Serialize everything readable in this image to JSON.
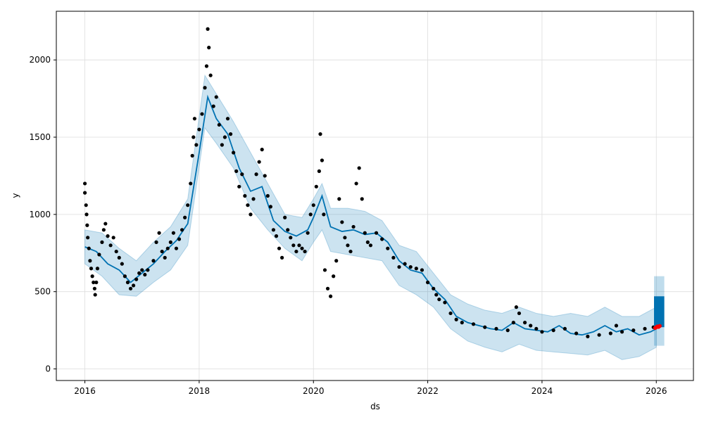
{
  "chart_data": {
    "type": "scatter",
    "xlabel": "ds",
    "ylabel": "y",
    "xlim": [
      2015.5,
      2026.65
    ],
    "ylim": [
      -75,
      2315
    ],
    "grid": true,
    "x_ticks": [
      2016,
      2018,
      2020,
      2022,
      2024,
      2026
    ],
    "x_tick_labels": [
      "2016",
      "2018",
      "2020",
      "2022",
      "2024",
      "2026"
    ],
    "y_ticks": [
      0,
      500,
      1000,
      1500,
      2000
    ],
    "y_tick_labels": [
      "0",
      "500",
      "1000",
      "1500",
      "2000"
    ],
    "colors": {
      "observed": "#000000",
      "forecast_line": "#0072B2",
      "interval_band": "#0072B2",
      "highlight": "#ff0000",
      "grid": "#dddddd"
    },
    "series": [
      {
        "kind": "observed_points",
        "points": [
          [
            2016.0,
            1200
          ],
          [
            2016.0,
            1140
          ],
          [
            2016.02,
            1060
          ],
          [
            2016.03,
            1000
          ],
          [
            2016.04,
            930
          ],
          [
            2016.05,
            850
          ],
          [
            2016.07,
            780
          ],
          [
            2016.09,
            700
          ],
          [
            2016.11,
            650
          ],
          [
            2016.13,
            600
          ],
          [
            2016.15,
            560
          ],
          [
            2016.17,
            520
          ],
          [
            2016.18,
            480
          ],
          [
            2016.2,
            560
          ],
          [
            2016.22,
            650
          ],
          [
            2016.25,
            740
          ],
          [
            2016.3,
            820
          ],
          [
            2016.33,
            900
          ],
          [
            2016.36,
            940
          ],
          [
            2016.4,
            860
          ],
          [
            2016.45,
            800
          ],
          [
            2016.5,
            850
          ],
          [
            2016.55,
            760
          ],
          [
            2016.6,
            720
          ],
          [
            2016.65,
            680
          ],
          [
            2016.7,
            600
          ],
          [
            2016.75,
            560
          ],
          [
            2016.8,
            520
          ],
          [
            2016.85,
            540
          ],
          [
            2016.9,
            580
          ],
          [
            2016.95,
            620
          ],
          [
            2017.0,
            640
          ],
          [
            2017.05,
            610
          ],
          [
            2017.1,
            640
          ],
          [
            2017.2,
            700
          ],
          [
            2017.25,
            820
          ],
          [
            2017.3,
            880
          ],
          [
            2017.35,
            760
          ],
          [
            2017.4,
            720
          ],
          [
            2017.45,
            780
          ],
          [
            2017.5,
            820
          ],
          [
            2017.55,
            880
          ],
          [
            2017.6,
            780
          ],
          [
            2017.65,
            840
          ],
          [
            2017.7,
            900
          ],
          [
            2017.75,
            980
          ],
          [
            2017.8,
            1060
          ],
          [
            2017.85,
            1200
          ],
          [
            2017.88,
            1380
          ],
          [
            2017.9,
            1500
          ],
          [
            2017.92,
            1620
          ],
          [
            2017.95,
            1450
          ],
          [
            2018.0,
            1550
          ],
          [
            2018.05,
            1650
          ],
          [
            2018.1,
            1820
          ],
          [
            2018.13,
            1960
          ],
          [
            2018.15,
            2200
          ],
          [
            2018.17,
            2080
          ],
          [
            2018.2,
            1900
          ],
          [
            2018.25,
            1700
          ],
          [
            2018.3,
            1760
          ],
          [
            2018.35,
            1580
          ],
          [
            2018.4,
            1450
          ],
          [
            2018.45,
            1500
          ],
          [
            2018.5,
            1620
          ],
          [
            2018.55,
            1520
          ],
          [
            2018.6,
            1400
          ],
          [
            2018.65,
            1280
          ],
          [
            2018.7,
            1180
          ],
          [
            2018.75,
            1260
          ],
          [
            2018.8,
            1120
          ],
          [
            2018.85,
            1060
          ],
          [
            2018.9,
            1000
          ],
          [
            2018.95,
            1100
          ],
          [
            2019.0,
            1260
          ],
          [
            2019.05,
            1340
          ],
          [
            2019.1,
            1420
          ],
          [
            2019.15,
            1250
          ],
          [
            2019.2,
            1120
          ],
          [
            2019.25,
            1050
          ],
          [
            2019.3,
            900
          ],
          [
            2019.35,
            860
          ],
          [
            2019.4,
            780
          ],
          [
            2019.45,
            720
          ],
          [
            2019.5,
            980
          ],
          [
            2019.55,
            900
          ],
          [
            2019.6,
            850
          ],
          [
            2019.65,
            800
          ],
          [
            2019.7,
            760
          ],
          [
            2019.75,
            800
          ],
          [
            2019.8,
            780
          ],
          [
            2019.85,
            760
          ],
          [
            2019.9,
            880
          ],
          [
            2019.95,
            1000
          ],
          [
            2020.0,
            1060
          ],
          [
            2020.05,
            1180
          ],
          [
            2020.1,
            1280
          ],
          [
            2020.12,
            1520
          ],
          [
            2020.15,
            1350
          ],
          [
            2020.18,
            1000
          ],
          [
            2020.2,
            640
          ],
          [
            2020.25,
            520
          ],
          [
            2020.3,
            470
          ],
          [
            2020.35,
            600
          ],
          [
            2020.4,
            700
          ],
          [
            2020.45,
            1100
          ],
          [
            2020.5,
            950
          ],
          [
            2020.55,
            850
          ],
          [
            2020.6,
            800
          ],
          [
            2020.65,
            760
          ],
          [
            2020.7,
            920
          ],
          [
            2020.75,
            1200
          ],
          [
            2020.8,
            1300
          ],
          [
            2020.85,
            1100
          ],
          [
            2020.9,
            880
          ],
          [
            2020.95,
            820
          ],
          [
            2021.0,
            800
          ],
          [
            2021.1,
            880
          ],
          [
            2021.2,
            840
          ],
          [
            2021.3,
            780
          ],
          [
            2021.4,
            720
          ],
          [
            2021.5,
            660
          ],
          [
            2021.6,
            680
          ],
          [
            2021.7,
            660
          ],
          [
            2021.8,
            650
          ],
          [
            2021.9,
            640
          ],
          [
            2022.0,
            560
          ],
          [
            2022.1,
            520
          ],
          [
            2022.15,
            480
          ],
          [
            2022.2,
            450
          ],
          [
            2022.3,
            430
          ],
          [
            2022.4,
            360
          ],
          [
            2022.5,
            320
          ],
          [
            2022.6,
            300
          ],
          [
            2022.8,
            290
          ],
          [
            2023.0,
            270
          ],
          [
            2023.2,
            260
          ],
          [
            2023.4,
            250
          ],
          [
            2023.5,
            300
          ],
          [
            2023.55,
            400
          ],
          [
            2023.6,
            360
          ],
          [
            2023.7,
            300
          ],
          [
            2023.8,
            280
          ],
          [
            2023.9,
            260
          ],
          [
            2024.0,
            240
          ],
          [
            2024.2,
            250
          ],
          [
            2024.4,
            260
          ],
          [
            2024.6,
            230
          ],
          [
            2024.8,
            210
          ],
          [
            2025.0,
            220
          ],
          [
            2025.2,
            230
          ],
          [
            2025.3,
            280
          ],
          [
            2025.4,
            240
          ],
          [
            2025.6,
            250
          ],
          [
            2025.8,
            260
          ],
          [
            2025.95,
            270
          ]
        ]
      },
      {
        "kind": "forecast_line",
        "points": [
          [
            2016.0,
            790
          ],
          [
            2016.2,
            760
          ],
          [
            2016.4,
            680
          ],
          [
            2016.6,
            640
          ],
          [
            2016.8,
            560
          ],
          [
            2017.0,
            620
          ],
          [
            2017.2,
            680
          ],
          [
            2017.4,
            760
          ],
          [
            2017.6,
            830
          ],
          [
            2017.8,
            940
          ],
          [
            2018.0,
            1400
          ],
          [
            2018.15,
            1760
          ],
          [
            2018.3,
            1620
          ],
          [
            2018.5,
            1520
          ],
          [
            2018.7,
            1300
          ],
          [
            2018.9,
            1150
          ],
          [
            2019.1,
            1180
          ],
          [
            2019.3,
            960
          ],
          [
            2019.5,
            890
          ],
          [
            2019.7,
            860
          ],
          [
            2019.9,
            900
          ],
          [
            2020.0,
            980
          ],
          [
            2020.15,
            1120
          ],
          [
            2020.3,
            920
          ],
          [
            2020.5,
            890
          ],
          [
            2020.7,
            900
          ],
          [
            2020.9,
            870
          ],
          [
            2021.1,
            880
          ],
          [
            2021.3,
            820
          ],
          [
            2021.5,
            700
          ],
          [
            2021.7,
            640
          ],
          [
            2021.9,
            620
          ],
          [
            2022.1,
            520
          ],
          [
            2022.3,
            450
          ],
          [
            2022.5,
            340
          ],
          [
            2022.7,
            300
          ],
          [
            2022.9,
            280
          ],
          [
            2023.1,
            260
          ],
          [
            2023.3,
            250
          ],
          [
            2023.5,
            300
          ],
          [
            2023.7,
            260
          ],
          [
            2023.9,
            250
          ],
          [
            2024.1,
            240
          ],
          [
            2024.3,
            280
          ],
          [
            2024.5,
            230
          ],
          [
            2024.7,
            220
          ],
          [
            2024.9,
            240
          ],
          [
            2025.1,
            280
          ],
          [
            2025.3,
            240
          ],
          [
            2025.5,
            260
          ],
          [
            2025.7,
            220
          ],
          [
            2025.9,
            240
          ],
          [
            2026.0,
            260
          ]
        ]
      },
      {
        "kind": "interval_band",
        "upper": [
          [
            2016.0,
            900
          ],
          [
            2016.3,
            880
          ],
          [
            2016.6,
            780
          ],
          [
            2016.9,
            700
          ],
          [
            2017.2,
            820
          ],
          [
            2017.5,
            920
          ],
          [
            2017.8,
            1100
          ],
          [
            2018.1,
            1900
          ],
          [
            2018.3,
            1780
          ],
          [
            2018.6,
            1600
          ],
          [
            2018.9,
            1400
          ],
          [
            2019.2,
            1200
          ],
          [
            2019.5,
            1000
          ],
          [
            2019.8,
            980
          ],
          [
            2020.0,
            1100
          ],
          [
            2020.15,
            1200
          ],
          [
            2020.3,
            1040
          ],
          [
            2020.6,
            1040
          ],
          [
            2020.9,
            1020
          ],
          [
            2021.2,
            960
          ],
          [
            2021.5,
            800
          ],
          [
            2021.8,
            760
          ],
          [
            2022.1,
            620
          ],
          [
            2022.4,
            480
          ],
          [
            2022.7,
            420
          ],
          [
            2023.0,
            380
          ],
          [
            2023.3,
            360
          ],
          [
            2023.6,
            400
          ],
          [
            2023.9,
            360
          ],
          [
            2024.2,
            340
          ],
          [
            2024.5,
            360
          ],
          [
            2024.8,
            340
          ],
          [
            2025.1,
            400
          ],
          [
            2025.4,
            340
          ],
          [
            2025.7,
            340
          ],
          [
            2026.0,
            400
          ]
        ],
        "lower": [
          [
            2016.0,
            680
          ],
          [
            2016.3,
            600
          ],
          [
            2016.6,
            480
          ],
          [
            2016.9,
            470
          ],
          [
            2017.2,
            560
          ],
          [
            2017.5,
            640
          ],
          [
            2017.8,
            800
          ],
          [
            2018.1,
            1560
          ],
          [
            2018.3,
            1460
          ],
          [
            2018.6,
            1300
          ],
          [
            2018.9,
            1040
          ],
          [
            2019.2,
            900
          ],
          [
            2019.5,
            780
          ],
          [
            2019.8,
            700
          ],
          [
            2020.0,
            820
          ],
          [
            2020.15,
            900
          ],
          [
            2020.3,
            760
          ],
          [
            2020.6,
            740
          ],
          [
            2020.9,
            720
          ],
          [
            2021.2,
            700
          ],
          [
            2021.5,
            540
          ],
          [
            2021.8,
            480
          ],
          [
            2022.1,
            400
          ],
          [
            2022.4,
            260
          ],
          [
            2022.7,
            180
          ],
          [
            2023.0,
            140
          ],
          [
            2023.3,
            110
          ],
          [
            2023.6,
            160
          ],
          [
            2023.9,
            120
          ],
          [
            2024.2,
            110
          ],
          [
            2024.5,
            100
          ],
          [
            2024.8,
            90
          ],
          [
            2025.1,
            120
          ],
          [
            2025.4,
            60
          ],
          [
            2025.7,
            80
          ],
          [
            2026.0,
            140
          ]
        ]
      },
      {
        "kind": "forecast_cluster",
        "x_range": [
          2025.96,
          2026.14
        ],
        "upper": 470,
        "lower": 270,
        "band_upper": 600,
        "band_lower": 150
      },
      {
        "kind": "highlight_points",
        "points": [
          [
            2025.98,
            265
          ],
          [
            2026.0,
            270
          ],
          [
            2026.02,
            275
          ],
          [
            2026.04,
            272
          ],
          [
            2026.06,
            278
          ]
        ]
      }
    ]
  }
}
